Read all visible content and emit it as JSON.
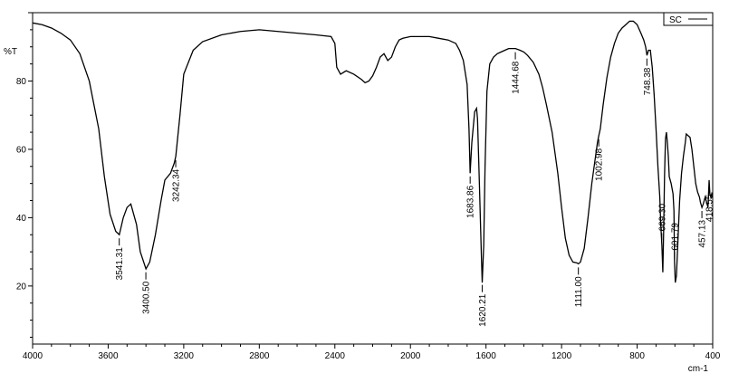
{
  "chart_data": {
    "type": "line",
    "title": "",
    "xlabel": "cm-1",
    "ylabel": "%T",
    "xlim": [
      4000,
      400
    ],
    "ylim": [
      3,
      100
    ],
    "grid": false,
    "legend": {
      "position": "top-right",
      "entries": [
        "SC"
      ]
    },
    "x_ticks": [
      4000,
      3600,
      3200,
      2800,
      2400,
      2000,
      1600,
      1200,
      800,
      400
    ],
    "x_tick_labels": [
      "4000",
      "3600",
      "3200",
      "2800",
      "2400",
      "2000",
      "1600",
      "1200",
      "800",
      "400"
    ],
    "y_ticks": [
      20,
      40,
      60,
      80
    ],
    "y_tick_labels": [
      "20",
      "40",
      "60",
      "80"
    ],
    "series": [
      {
        "name": "SC",
        "color": "#000000",
        "x": [
          4000,
          3950,
          3900,
          3850,
          3800,
          3750,
          3700,
          3650,
          3620,
          3590,
          3560,
          3541,
          3520,
          3500,
          3480,
          3450,
          3430,
          3400,
          3380,
          3350,
          3320,
          3300,
          3270,
          3250,
          3242,
          3220,
          3200,
          3150,
          3100,
          3000,
          2900,
          2800,
          2700,
          2600,
          2500,
          2420,
          2400,
          2390,
          2370,
          2340,
          2300,
          2260,
          2240,
          2220,
          2200,
          2180,
          2160,
          2140,
          2120,
          2100,
          2080,
          2060,
          2040,
          2000,
          1950,
          1900,
          1850,
          1800,
          1760,
          1740,
          1720,
          1700,
          1690,
          1684,
          1675,
          1660,
          1650,
          1645,
          1635,
          1625,
          1620,
          1612,
          1605,
          1595,
          1580,
          1560,
          1540,
          1520,
          1500,
          1480,
          1460,
          1444,
          1420,
          1400,
          1380,
          1350,
          1320,
          1300,
          1280,
          1250,
          1220,
          1200,
          1180,
          1160,
          1140,
          1120,
          1111,
          1100,
          1080,
          1060,
          1040,
          1020,
          1010,
          1003,
          995,
          980,
          960,
          940,
          920,
          900,
          880,
          860,
          840,
          820,
          800,
          780,
          765,
          755,
          748,
          740,
          730,
          720,
          710,
          700,
          690,
          680,
          675,
          669,
          664,
          660,
          655,
          650,
          645,
          640,
          635,
          630,
          620,
          610,
          605,
          602,
          598,
          592,
          585,
          575,
          565,
          555,
          545,
          540,
          530,
          520,
          510,
          500,
          490,
          480,
          470,
          465,
          457,
          450,
          440,
          430,
          425,
          419,
          415,
          410,
          405,
          400
        ],
        "y": [
          97,
          96.5,
          95.5,
          94,
          92,
          88,
          80,
          66,
          52,
          41,
          36,
          35,
          40,
          43,
          44,
          38,
          30,
          25,
          27,
          35,
          45,
          51,
          53,
          56,
          58,
          70,
          82,
          89,
          91.5,
          93.5,
          94.5,
          95,
          94.5,
          94,
          93.5,
          93,
          91,
          84,
          82,
          83,
          82,
          80.5,
          79.5,
          80,
          81.5,
          84,
          87,
          88,
          86,
          87,
          90,
          92,
          92.5,
          93,
          93,
          93,
          92.5,
          92,
          91,
          89,
          86,
          79,
          66,
          53,
          62,
          71,
          72,
          69,
          50,
          30,
          21,
          32,
          55,
          77,
          85,
          87,
          88,
          88.5,
          89,
          89.5,
          89.5,
          89.5,
          89,
          88.5,
          87.5,
          85.5,
          82,
          78,
          73,
          65,
          53,
          43,
          34,
          29,
          27,
          26.8,
          26.5,
          27,
          31,
          40,
          50,
          58,
          62,
          64,
          66,
          73,
          81,
          87,
          91,
          94,
          95.5,
          96.5,
          97.5,
          97.5,
          96.5,
          94,
          92,
          90,
          87.5,
          89,
          89,
          84,
          76,
          66,
          55,
          46,
          38,
          32,
          24,
          35,
          52,
          63,
          65,
          62,
          58,
          52,
          50,
          47,
          42,
          27,
          21,
          23,
          32,
          45,
          53,
          58,
          62,
          64.5,
          64,
          63.5,
          60,
          55,
          50,
          47.5,
          46,
          44.5,
          43,
          44,
          46,
          44,
          43,
          51,
          47,
          46,
          47,
          46
        ]
      }
    ],
    "annotations": [
      {
        "x": 3541.31,
        "label": "3541.31"
      },
      {
        "x": 3400.5,
        "label": "3400.50"
      },
      {
        "x": 3242.34,
        "label": "3242.34"
      },
      {
        "x": 1683.86,
        "label": "1683.86"
      },
      {
        "x": 1620.21,
        "label": "1620.21"
      },
      {
        "x": 1444.68,
        "label": "1444.68"
      },
      {
        "x": 1111.0,
        "label": "1111.00"
      },
      {
        "x": 1002.98,
        "label": "1002.98"
      },
      {
        "x": 748.38,
        "label": "748.38"
      },
      {
        "x": 669.3,
        "label": "669.30"
      },
      {
        "x": 601.79,
        "label": "601.79"
      },
      {
        "x": 457.13,
        "label": "457.13"
      },
      {
        "x": 418.55,
        "label": "418.55"
      }
    ]
  }
}
